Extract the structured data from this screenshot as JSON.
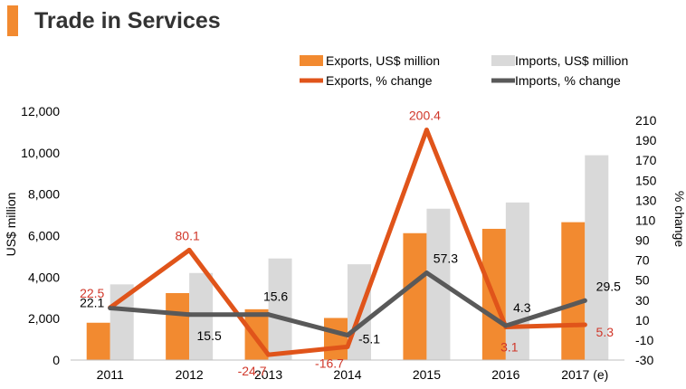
{
  "header": {
    "title": "Trade in Services",
    "accent_color": "#F28A30"
  },
  "colors": {
    "exports_bar": "#F28A30",
    "imports_bar": "#D9D9D9",
    "exports_line": "#E0541A",
    "imports_line": "#595959",
    "exports_label": "#D0372A",
    "imports_label": "#000000",
    "axis_text": "#000000"
  },
  "chart_data": {
    "type": "bar",
    "title": "Trade in Services",
    "categories": [
      "2011",
      "2012",
      "2013",
      "2014",
      "2015",
      "2016",
      "2017 (e)"
    ],
    "ylabel": "US$ million",
    "y2label": "% change",
    "ylim": [
      0,
      12000
    ],
    "y2lim": [
      -30,
      210
    ],
    "yticks": [
      "0",
      "2,000",
      "4,000",
      "6,000",
      "8,000",
      "10,000",
      "12,000"
    ],
    "y2ticks": [
      "-30",
      "-10",
      "10",
      "30",
      "50",
      "70",
      "90",
      "110",
      "130",
      "150",
      "170",
      "190",
      "210"
    ],
    "legend_position": "top",
    "grid": false,
    "series": [
      {
        "name": "Exports, US$ million",
        "type": "bar",
        "axis": "left",
        "values": [
          1800,
          3230,
          2450,
          2030,
          6120,
          6330,
          6650
        ]
      },
      {
        "name": "Imports, US$ million",
        "type": "bar",
        "axis": "left",
        "values": [
          3650,
          4200,
          4900,
          4620,
          7300,
          7600,
          9880
        ]
      },
      {
        "name": "Exports, % change",
        "type": "line",
        "axis": "right",
        "values": [
          22.5,
          80.1,
          -24.7,
          -16.7,
          200.4,
          3.1,
          5.3
        ],
        "labels": [
          "22.5",
          "80.1",
          "-24.7",
          "-16.7",
          "200.4",
          "3.1",
          "5.3"
        ]
      },
      {
        "name": "Imports, % change",
        "type": "line",
        "axis": "right",
        "values": [
          22.1,
          15.5,
          15.6,
          -5.1,
          57.3,
          4.3,
          29.5
        ],
        "labels": [
          "22.1",
          "15.5",
          "15.6",
          "-5.1",
          "57.3",
          "4.3",
          "29.5"
        ]
      }
    ]
  }
}
